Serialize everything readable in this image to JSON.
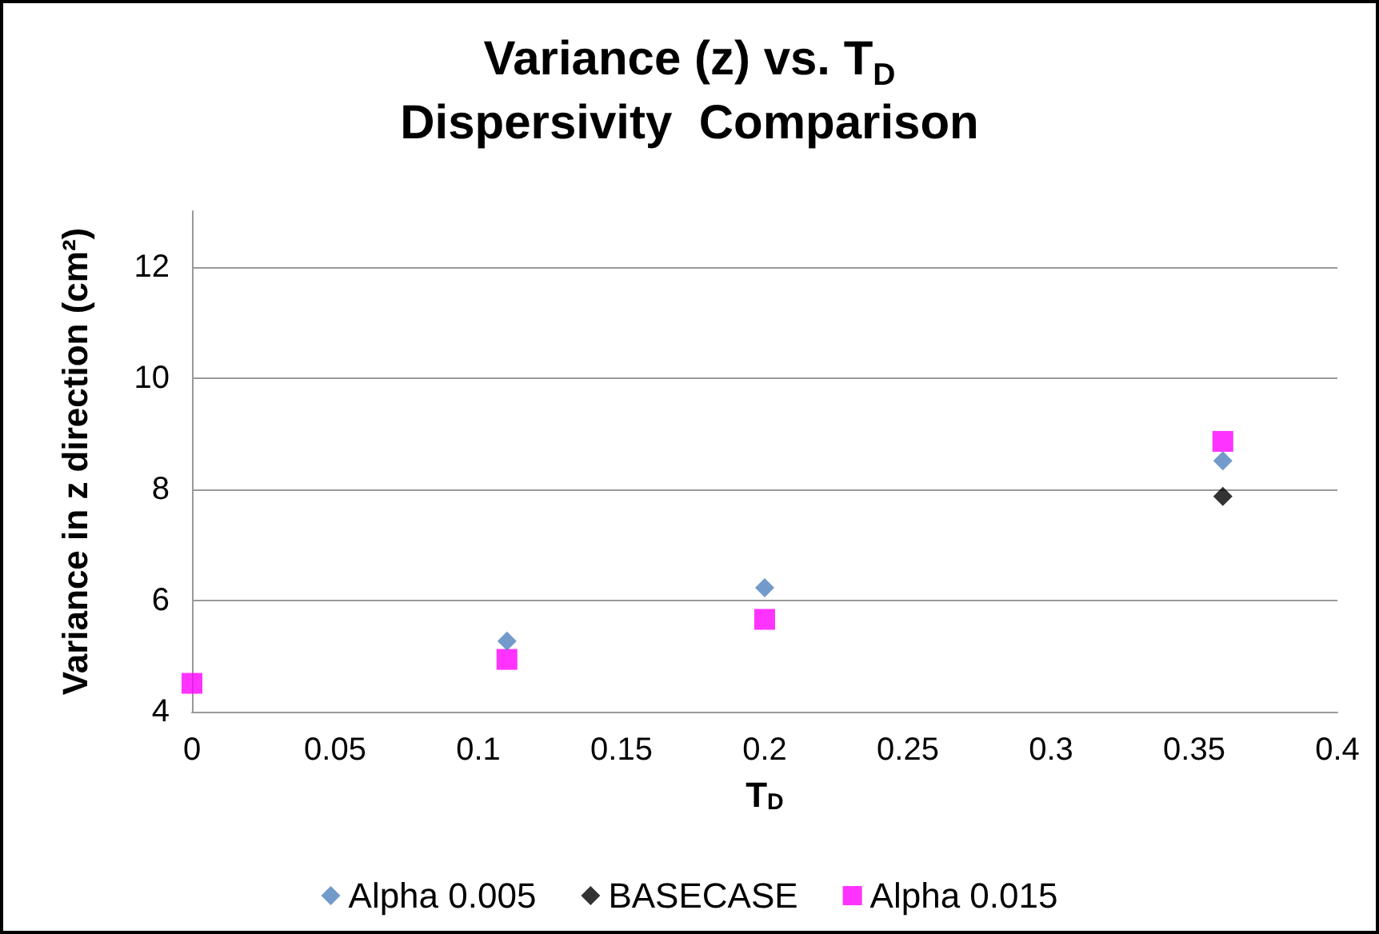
{
  "chart_data": {
    "type": "scatter",
    "title": "Variance (z) vs. T$_{D}$\nDispersivity  Comparison",
    "xlabel": "T$_{D}$",
    "ylabel": "Variance in z direction (cm²)",
    "series": [
      {
        "name": "Alpha 0.005",
        "color": "#4f81bd",
        "marker": "diamond",
        "x": [
          0.11,
          0.2,
          0.36
        ],
        "values": [
          5.27,
          6.23,
          8.51
        ]
      },
      {
        "name": "BASECASE",
        "color": "#000000",
        "marker": "diamond",
        "x": [
          0.36
        ],
        "values": [
          7.87
        ]
      },
      {
        "name": "Alpha 0.015",
        "color": "#ff00ff",
        "marker": "square",
        "x": [
          0,
          0.11,
          0.2,
          0.36
        ],
        "values": [
          4.51,
          4.94,
          5.66,
          8.86
        ]
      }
    ],
    "xlim": [
      0,
      0.4
    ],
    "xticks": [
      0,
      0.05,
      0.1,
      0.15,
      0.2,
      0.25,
      0.3,
      0.35,
      0.4
    ],
    "ylim": [
      4,
      13
    ],
    "yticks": [
      4,
      6,
      8,
      10,
      12
    ],
    "grid": "y",
    "legend": "bottom"
  }
}
